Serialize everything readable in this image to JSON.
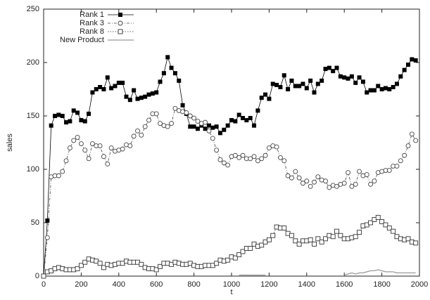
{
  "chart_data": {
    "type": "line",
    "xlabel": "t",
    "ylabel": "sales",
    "x": [
      0,
      20,
      40,
      60,
      80,
      100,
      120,
      140,
      160,
      180,
      200,
      220,
      240,
      260,
      280,
      300,
      320,
      340,
      360,
      380,
      400,
      420,
      440,
      460,
      480,
      500,
      520,
      540,
      560,
      580,
      600,
      620,
      640,
      660,
      680,
      700,
      720,
      740,
      760,
      780,
      800,
      820,
      840,
      860,
      880,
      900,
      920,
      940,
      960,
      980,
      1000,
      1020,
      1040,
      1060,
      1080,
      1100,
      1120,
      1140,
      1160,
      1180,
      1200,
      1220,
      1240,
      1260,
      1280,
      1300,
      1320,
      1340,
      1360,
      1380,
      1400,
      1420,
      1440,
      1460,
      1480,
      1500,
      1520,
      1540,
      1560,
      1580,
      1600,
      1620,
      1640,
      1660,
      1680,
      1700,
      1720,
      1740,
      1760,
      1780,
      1800,
      1820,
      1840,
      1860,
      1880,
      1900,
      1920,
      1940,
      1960,
      1980
    ],
    "series": [
      {
        "name": "Rank 1",
        "color": "#000000",
        "marker": "filled-square",
        "dash": "solid",
        "values": [
          0,
          52,
          141,
          150,
          151,
          150,
          144,
          145,
          155,
          153,
          146,
          145,
          152,
          172,
          175,
          177,
          175,
          186,
          176,
          178,
          181,
          181,
          168,
          165,
          174,
          166,
          167,
          168,
          170,
          171,
          172,
          182,
          190,
          205,
          195,
          190,
          183,
          160,
          152,
          140,
          140,
          138,
          141,
          138,
          141,
          139,
          140,
          134,
          137,
          141,
          146,
          145,
          151,
          148,
          146,
          148,
          141,
          155,
          167,
          170,
          166,
          180,
          179,
          177,
          188,
          175,
          183,
          178,
          178,
          180,
          176,
          183,
          172,
          180,
          183,
          194,
          195,
          192,
          195,
          187,
          186,
          185,
          187,
          181,
          186,
          182,
          172,
          174,
          174,
          178,
          175,
          176,
          175,
          177,
          180,
          187,
          193,
          198,
          203,
          202
        ]
      },
      {
        "name": "Rank 3",
        "color": "#444444",
        "marker": "circle",
        "dash": "dash-dot",
        "values": [
          0,
          36,
          93,
          94,
          94,
          98,
          108,
          120,
          127,
          130,
          124,
          118,
          110,
          124,
          122,
          122,
          112,
          105,
          120,
          117,
          118,
          119,
          123,
          122,
          131,
          136,
          132,
          140,
          146,
          152,
          152,
          143,
          141,
          140,
          143,
          157,
          155,
          154,
          153,
          150,
          148,
          145,
          143,
          144,
          136,
          129,
          118,
          109,
          106,
          104,
          112,
          113,
          111,
          113,
          110,
          110,
          112,
          108,
          110,
          113,
          120,
          122,
          121,
          111,
          108,
          94,
          92,
          98,
          92,
          87,
          89,
          84,
          88,
          93,
          90,
          89,
          83,
          85,
          84,
          86,
          87,
          97,
          84,
          86,
          98,
          94,
          95,
          86,
          89,
          97,
          98,
          99,
          99,
          103,
          103,
          108,
          113,
          122,
          133,
          127
        ]
      },
      {
        "name": "Rank 8",
        "color": "#333333",
        "marker": "square",
        "dash": "dotted",
        "values": [
          0,
          4,
          5,
          7,
          8,
          7,
          6,
          6,
          6,
          7,
          10,
          13,
          16,
          15,
          14,
          12,
          8,
          11,
          10,
          11,
          12,
          12,
          14,
          13,
          13,
          13,
          11,
          8,
          7,
          7,
          6,
          9,
          12,
          12,
          11,
          13,
          12,
          11,
          11,
          12,
          10,
          9,
          9,
          10,
          10,
          10,
          12,
          15,
          14,
          15,
          18,
          17,
          20,
          23,
          26,
          26,
          30,
          28,
          29,
          32,
          34,
          38,
          46,
          45,
          45,
          40,
          38,
          33,
          30,
          33,
          33,
          34,
          30,
          35,
          32,
          35,
          38,
          37,
          42,
          38,
          35,
          35,
          36,
          37,
          41,
          47,
          48,
          50,
          53,
          55,
          51,
          48,
          45,
          42,
          37,
          35,
          34,
          35,
          32,
          31
        ]
      },
      {
        "name": "New Product",
        "color": "#999999",
        "marker": "none",
        "dash": "solid",
        "values": [
          null,
          null,
          null,
          null,
          null,
          null,
          null,
          null,
          null,
          null,
          null,
          null,
          null,
          null,
          null,
          null,
          null,
          null,
          null,
          null,
          null,
          null,
          null,
          null,
          null,
          null,
          null,
          null,
          null,
          null,
          null,
          null,
          null,
          null,
          null,
          null,
          null,
          null,
          null,
          null,
          null,
          null,
          null,
          null,
          null,
          null,
          null,
          null,
          null,
          null,
          null,
          null,
          1,
          1,
          1,
          1,
          1,
          1,
          1,
          1,
          null,
          null,
          null,
          null,
          null,
          null,
          null,
          null,
          null,
          null,
          null,
          null,
          null,
          null,
          null,
          null,
          null,
          null,
          null,
          null,
          1,
          2,
          3,
          2,
          3,
          3,
          4,
          5,
          5,
          6,
          5,
          4,
          4,
          4,
          3,
          3,
          3,
          3,
          3,
          3
        ]
      }
    ],
    "xlim": [
      0,
      2000
    ],
    "xticks": [
      0,
      200,
      400,
      600,
      800,
      1000,
      1200,
      1400,
      1600,
      1800,
      2000
    ],
    "ylim": [
      0,
      250
    ],
    "yticks": [
      0,
      50,
      100,
      150,
      200,
      250
    ],
    "legend": "upper-left",
    "grid": false
  }
}
